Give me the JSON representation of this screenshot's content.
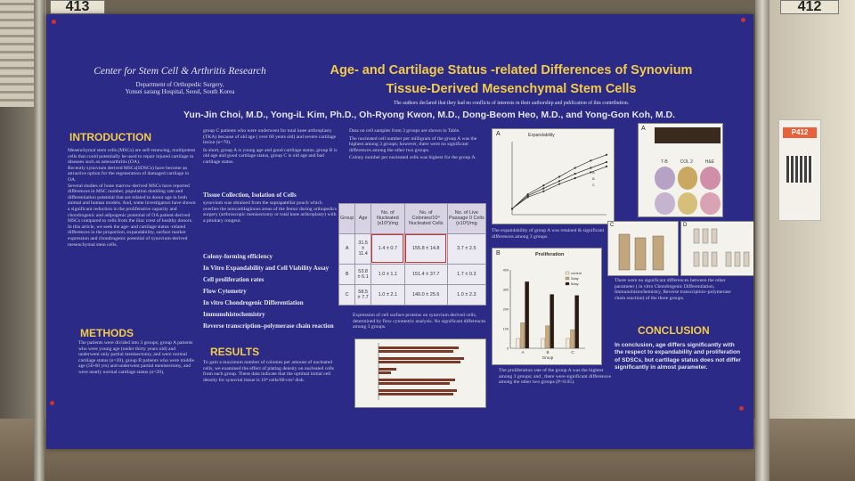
{
  "board_numbers": {
    "left": "413",
    "right": "412"
  },
  "header": {
    "affiliation_title": "Center for Stem Cell & Arthritis Research",
    "affiliation_dept": "Department of Orthopedic Surgery,",
    "affiliation_hospital": "Yonsei sarang Hospital, Seoul, South Korea",
    "title_line1": "Age- and Cartilage Status -related Differences of Synovium",
    "title_line2": "Tissue-Derived Mesenchymal Stem Cells",
    "disclosure": "The authors declared that they had no conflicts of interests in their authorship and publication of this contribution.",
    "authors": "Yun-Jin Choi, M.D., Yong-iL Kim, Ph.D., Oh-Ryong Kwon, M.D., Dong-Beom Heo, M.D., and Yong-Gon Koh, M.D."
  },
  "introduction": {
    "heading": "INTRODUCTION",
    "p1": "Mesenchymal stem cells (MSCs) are self-renewing, multipotent cells that could potentially be used to repair injured cartilage in diseases such as osteoarthritis (OA).",
    "p2": "Recently synovium derived MSCs(SDSCs) have become an attractive option for the regeneration of damaged cartilage in OA.",
    "p3": "Several studies of bone marrow-derived MSCs have reported differences in MSC number, population doubling rate and differentiation potential that are related to donor age in both animal and human models. And, some investigators have shown a significant reduction in the proliferative capacity and chondrogenic and adipogenic potential of OA patient-derived MSCs compared to cells from the iliac crest of healthy donors.",
    "p4": "In this article, we seek the age- and cartilage status -related differences in the proportion, expandability, surface marker expression and chondrogenic potential of synovium-derived mesenchymal stem cells."
  },
  "methods": {
    "heading": "METHODS",
    "p1": "The patients were divided into 3 groups; group A patients who were young age (under thirty years old) and underwent only partial menisectomy, and were normal cartilage status (n=20), group B patients who were middle age (50-60 yrs) and underwent partial menisectomy, and were nearly normal cartilage status (n=20),"
  },
  "col2": {
    "p1": "group C patients who were underwent for total knee arthroplasty (TKA) because of old age ( over 60 years old) and severe cartilage lesion (n=70).",
    "p2": "In short, group A is young age and good cartilage status, group B is old age and good cartilage status, group C is old age and bad cartilage status.",
    "tissue_heading": "Tissue Collection, Isolation of Cells",
    "tissue_text": "synovium was obtained from the suprapatellar pouch which overlies the noncartilaginous areas of the femur during orthopedics surgery (arthroscopic menisectomy or total knee arthroplasty) with a pituitary rongeur.",
    "methods_list": [
      "Colony-forming efficiency",
      "In Vitro Expandability and Cell Viability Assay",
      "Cell proliferation rates",
      "Flow Cytometry",
      "In vitro Chondrogenic Differentiation",
      "Immunohistochemistry",
      "Reverse transcription–polymerase chain reaction"
    ],
    "results_heading": "RESULTS",
    "results_text": "To gain a maximum number of colonies per amount of nucleated cells, we examined the effect of plating density on nucleated cells from each group. These data indicate that the optimal initial cell density for synovial tissue is 10⁴ cells/60-cm² dish."
  },
  "col3": {
    "p1": "Data on cell samples from 3 groups are shown in Table.",
    "p2": "The nucleated cell number per milligram of the group A was the highest among 3 groups; however, there were no significant differences among the other two groups.",
    "p3": "Colony number per nucleated cells was highest for the group A.",
    "table": {
      "headers": [
        "Group",
        "Age",
        "No. of Nucleated (x10³)/mg",
        "No. of Colonies/10⁴ Nucleated Cells",
        "No. of Live Passage 0 Cells (x10³)/mg"
      ],
      "rows": [
        [
          "A",
          "31.5 ± 11.4",
          "1.4 ± 0.7",
          "155.8 ± 14.8",
          "3.7 ± 2.5"
        ],
        [
          "B",
          "53.8 ± 6.1",
          "1.0 ± 1.1",
          "151.4 ± 37.7",
          "1.7 ± 0.3"
        ],
        [
          "C",
          "58.5 ± 7.7",
          "1.0 ± 2.1",
          "140.0 ± 25.6",
          "1.0 ± 2.3"
        ]
      ]
    },
    "flow_caption": "Expression of cell surface proteins on synovium derived cells, determined by flow cytometric analysis. No significant differences among 3 groups."
  },
  "col4": {
    "expand_chart_title": "Expandability",
    "expand_caption": "The expandability of group A was retained & significant differences among 3 groups.",
    "prolif_chart_title": "Proliferation",
    "prolif_xlabel": "Group",
    "prolif_legend": [
      "control",
      "3day",
      "5day"
    ],
    "prolif_caption": "The proliferation rate of the group A was the highest among 3 groups; and , there were significant differences among the other two groups (P<0.05).",
    "panel_a_label": "A",
    "panel_b_label": "B",
    "stain_labels": [
      "T-B",
      "COL 2",
      "H&E"
    ]
  },
  "col5": {
    "panel_c_label": "C",
    "panel_d_label": "D",
    "diff_text": "There were no significant differences between the other parameter ( in vitro Chondrogenic Differentiation, Immunohistochemistry, Reverse transcription–polymerase chain reaction) of the three groups.",
    "conclusion_heading": "CONCLUSION",
    "conclusion_text": "In conclusion, age differs significantly with the respect to expandability and proliferation of SDSCs, but cartilage status does not differ significantly in almost parameter."
  },
  "right_poster": {
    "code": "P412"
  },
  "colors": {
    "poster_bg": "#2b2a86",
    "heading": "#f3cb4a",
    "body_text": "#d4d4e6"
  },
  "chart_data": [
    {
      "type": "line",
      "title": "Expandability",
      "x": [
        1,
        2,
        3,
        4,
        5,
        6,
        7
      ],
      "series": [
        {
          "name": "A",
          "values": [
            0.4,
            1.4,
            2.0,
            2.6,
            3.2,
            3.7,
            4.1
          ]
        },
        {
          "name": "B",
          "values": [
            0.4,
            1.3,
            1.8,
            2.3,
            2.8,
            3.2,
            3.6
          ]
        },
        {
          "name": "C",
          "values": [
            0.4,
            1.2,
            1.6,
            2.1,
            2.5,
            2.9,
            3.3
          ]
        }
      ],
      "ylim": [
        0,
        5
      ]
    },
    {
      "type": "bar",
      "title": "Proliferation",
      "categories": [
        "A",
        "B",
        "C"
      ],
      "xlabel": "Group",
      "series": [
        {
          "name": "control",
          "values": [
            50,
            50,
            50
          ]
        },
        {
          "name": "3day",
          "values": [
            130,
            115,
            95
          ]
        },
        {
          "name": "5day",
          "values": [
            340,
            275,
            270
          ]
        }
      ],
      "ylim": [
        0,
        400
      ]
    }
  ]
}
